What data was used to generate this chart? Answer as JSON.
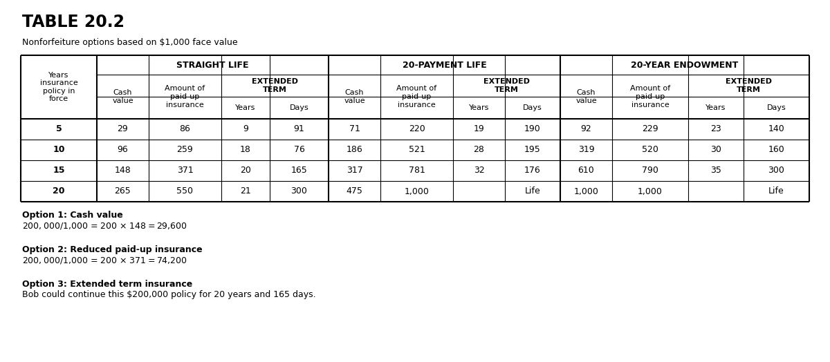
{
  "title": "TABLE 20.2",
  "subtitle": "Nonforfeiture options based on $1,000 face value",
  "bg_color": "#ffffff",
  "years_rows": [
    "5",
    "10",
    "15",
    "20"
  ],
  "straight_life": {
    "cash_value": [
      "29",
      "96",
      "148",
      "265"
    ],
    "paid_up": [
      "86",
      "259",
      "371",
      "550"
    ],
    "ext_years": [
      "9",
      "18",
      "20",
      "21"
    ],
    "ext_days": [
      "91",
      "76",
      "165",
      "300"
    ]
  },
  "payment_life": {
    "cash_value": [
      "71",
      "186",
      "317",
      "475"
    ],
    "paid_up": [
      "220",
      "521",
      "781",
      "1,000"
    ],
    "ext_years": [
      "19",
      "28",
      "32",
      ""
    ],
    "ext_days": [
      "190",
      "195",
      "176",
      "Life"
    ]
  },
  "endowment": {
    "cash_value": [
      "92",
      "319",
      "610",
      "1,000"
    ],
    "paid_up": [
      "229",
      "520",
      "790",
      "1,000"
    ],
    "ext_years": [
      "23",
      "30",
      "35",
      ""
    ],
    "ext_days": [
      "140",
      "160",
      "300",
      "Life"
    ]
  },
  "option1_bold": "Option 1: Cash value",
  "option1_text": "$200,000/$1,000 = 200 × $148 = $29,600",
  "option2_bold": "Option 2: Reduced paid-up insurance",
  "option2_text": "$200,000/$1,000 = 200 × $371 = $74,200",
  "option3_bold": "Option 3: Extended term insurance",
  "option3_text": "Bob could continue this $200,000 policy for 20 years and 165 days."
}
